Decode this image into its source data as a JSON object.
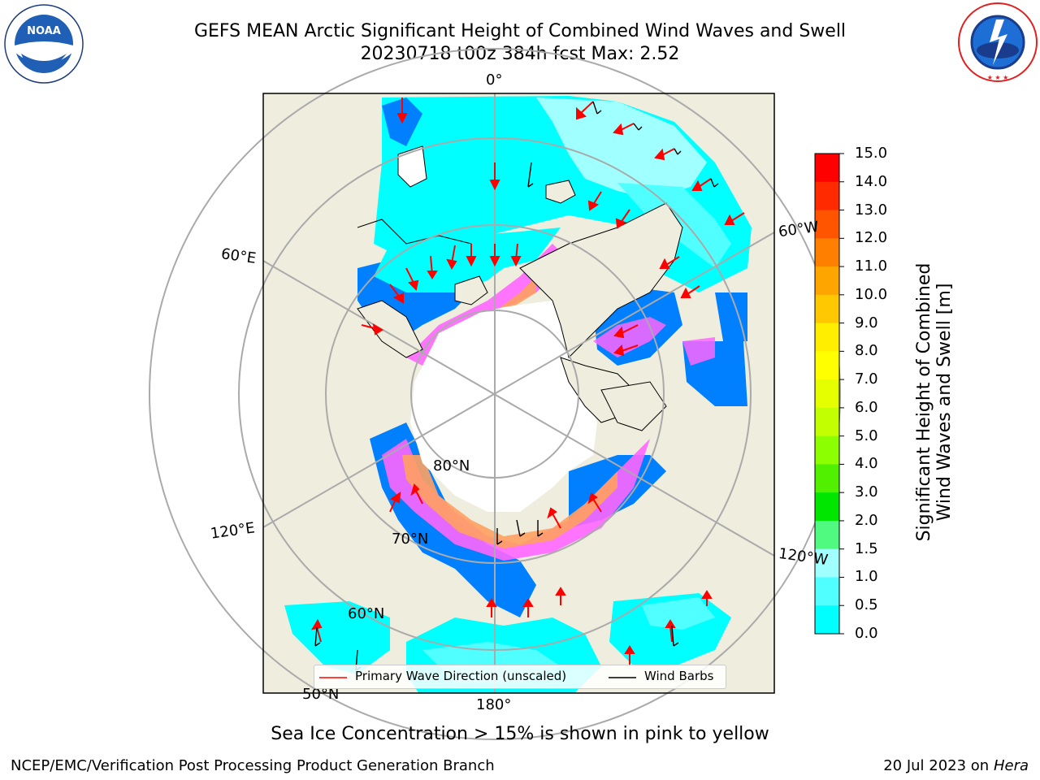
{
  "header": {
    "title_line1": "GEFS MEAN Arctic Significant Height of Combined Wind Waves and Swell",
    "title_line2": "20230718 t00z 384h fcst   Max: 2.52"
  },
  "logos": {
    "left": {
      "text": "NOAA",
      "ring_text": "NATIONAL OCEANIC AND ATMOSPHERIC ADMINISTRATION · U.S. DEPARTMENT OF COMMERCE"
    },
    "right": {
      "ring_text": "NATIONAL WEATHER SERVICE"
    }
  },
  "map": {
    "projection": "north-polar-stereographic",
    "lon_labels": {
      "top": "0°",
      "left_upper": "60°E",
      "left_lower": "120°E",
      "right_upper": "60°W",
      "right_lower": "120°W",
      "bottom": "180°"
    },
    "lat_labels": {
      "lat80": "80°N",
      "lat70": "70°N",
      "lat60": "60°N",
      "lat50": "50°N"
    },
    "colors": {
      "land": "#efedde",
      "ocean_grid": "#aaaaaa",
      "ice": "#ffffff"
    }
  },
  "colorbar": {
    "label_line1": "Significant Height of Combined",
    "label_line2": "Wind Waves and Swell [m]",
    "ticks": [
      "15.0",
      "14.0",
      "13.0",
      "12.0",
      "11.0",
      "10.0",
      "9.0",
      "8.0",
      "7.0",
      "6.0",
      "5.0",
      "4.0",
      "3.0",
      "2.0",
      "1.5",
      "1.0",
      "0.5",
      "0.0"
    ],
    "colors": [
      "#ff0000",
      "#ff2a00",
      "#ff5500",
      "#ff7f00",
      "#ffa500",
      "#ffc800",
      "#ffee00",
      "#ffff00",
      "#e5ff00",
      "#c2ff00",
      "#8cff00",
      "#50f000",
      "#00e600",
      "#50fa80",
      "#a0ffff",
      "#50ffff",
      "#00ffff",
      "#0080ff",
      "#0000ff"
    ]
  },
  "legend": {
    "primary_wave": "Primary Wave Direction (unscaled)",
    "wind_barbs": "Wind Barbs",
    "primary_color": "#ff0000",
    "barb_color": "#000000"
  },
  "caption": "Sea Ice Concentration > 15% is shown in pink to yellow",
  "footer": {
    "left": "NCEP/EMC/Verification Post Processing Product Generation Branch",
    "right_prefix": "20 Jul 2023 on ",
    "right_host": "Hera"
  }
}
